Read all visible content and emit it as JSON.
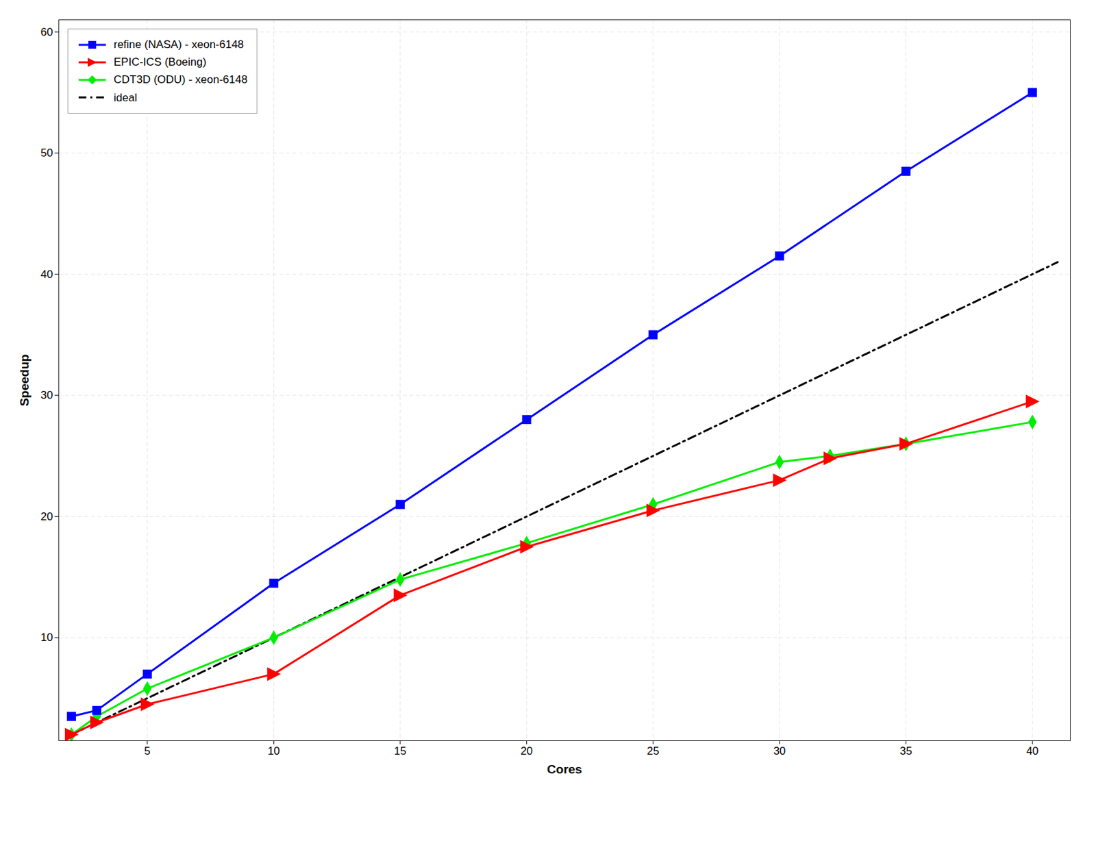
{
  "chart_data": {
    "type": "line",
    "xlabel": "Cores",
    "ylabel": "Speedup",
    "xlim": [
      1.5,
      41.5
    ],
    "ylim": [
      1.5,
      61
    ],
    "xticks": [
      5,
      10,
      15,
      20,
      25,
      30,
      35,
      40
    ],
    "yticks": [
      10,
      20,
      30,
      40,
      50,
      60
    ],
    "grid": true,
    "legend": "upper left",
    "series": [
      {
        "name": "refine (NASA) - xeon-6148",
        "color": "#0000ff",
        "marker": "square",
        "line_style": "solid",
        "x": [
          2,
          3,
          5,
          10,
          15,
          20,
          25,
          30,
          35,
          40
        ],
        "values": [
          3.5,
          4.0,
          7.0,
          14.5,
          21.0,
          28.0,
          35.0,
          41.5,
          48.5,
          55.0
        ]
      },
      {
        "name": "EPIC-ICS (Boeing)",
        "color": "#ff0000",
        "marker": "triangle-right",
        "line_style": "solid",
        "x": [
          2,
          3,
          5,
          10,
          15,
          20,
          25,
          30,
          32,
          35,
          40
        ],
        "values": [
          2.0,
          3.0,
          4.5,
          7.0,
          13.5,
          17.5,
          20.5,
          23.0,
          24.8,
          26.0,
          29.5
        ]
      },
      {
        "name": "CDT3D (ODU) - xeon-6148",
        "color": "#00ee00",
        "marker": "diamond",
        "line_style": "solid",
        "x": [
          2,
          3,
          5,
          10,
          15,
          20,
          25,
          30,
          32,
          35,
          40
        ],
        "values": [
          2.0,
          3.5,
          5.8,
          10.0,
          14.8,
          17.8,
          21.0,
          24.5,
          25.0,
          26.0,
          27.8
        ]
      },
      {
        "name": "ideal",
        "color": "#000000",
        "marker": "none",
        "line_style": "dashdot",
        "x": [
          2,
          41
        ],
        "values": [
          2,
          41
        ]
      }
    ]
  }
}
